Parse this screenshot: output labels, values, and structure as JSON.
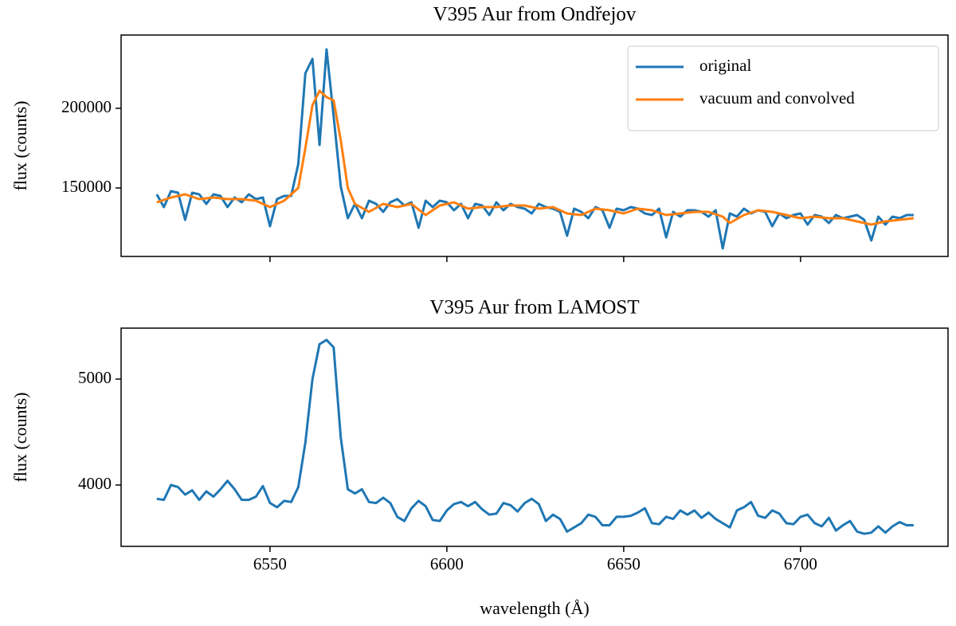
{
  "chart_data": [
    {
      "type": "line",
      "title": "V395 Aur from Ondřejov",
      "ylabel": "flux (counts)",
      "xlim": [
        6507.9,
        6741.7
      ],
      "ylim": [
        107000,
        246000
      ],
      "yticks": [
        150000,
        200000
      ],
      "sharex": 1,
      "legend": "upper right",
      "series": [
        {
          "name": "original",
          "color": "#1f77b4",
          "x": [
            6518,
            6520,
            6522,
            6524,
            6526,
            6528,
            6530,
            6532,
            6534,
            6536,
            6538,
            6540,
            6542,
            6544,
            6546,
            6548,
            6550,
            6552,
            6554,
            6556,
            6558,
            6560,
            6562,
            6564,
            6566,
            6568,
            6570,
            6572,
            6574,
            6576,
            6578,
            6580,
            6582,
            6584,
            6586,
            6588,
            6590,
            6592,
            6594,
            6596,
            6598,
            6600,
            6602,
            6604,
            6606,
            6608,
            6610,
            6612,
            6614,
            6616,
            6618,
            6620,
            6622,
            6624,
            6626,
            6628,
            6630,
            6632,
            6634,
            6636,
            6638,
            6640,
            6642,
            6644,
            6646,
            6648,
            6650,
            6652,
            6654,
            6656,
            6658,
            6660,
            6662,
            6664,
            6666,
            6668,
            6670,
            6672,
            6674,
            6676,
            6678,
            6680,
            6682,
            6684,
            6686,
            6688,
            6690,
            6692,
            6694,
            6696,
            6698,
            6700,
            6702,
            6704,
            6706,
            6708,
            6710,
            6712,
            6714,
            6716,
            6718,
            6720,
            6722,
            6724,
            6726,
            6728,
            6730,
            6732
          ],
          "values": [
            146000,
            138000,
            148000,
            147000,
            130000,
            147000,
            146000,
            140000,
            146000,
            145000,
            138000,
            144000,
            141000,
            146000,
            143000,
            144000,
            126000,
            143000,
            145000,
            145000,
            165000,
            222000,
            231000,
            177000,
            237000,
            195000,
            151000,
            131000,
            140000,
            131000,
            142000,
            140000,
            135000,
            141000,
            143000,
            139000,
            141000,
            125000,
            142000,
            138000,
            142000,
            141000,
            136000,
            140000,
            131000,
            140000,
            139000,
            133000,
            141000,
            136000,
            140000,
            138000,
            137000,
            134000,
            140000,
            138000,
            137000,
            135000,
            120000,
            137000,
            135000,
            131000,
            138000,
            136000,
            125000,
            137000,
            136000,
            138000,
            137000,
            134000,
            133000,
            137000,
            119000,
            135000,
            132000,
            136000,
            136000,
            135000,
            132000,
            136000,
            112000,
            134000,
            132000,
            137000,
            134000,
            136000,
            135000,
            126000,
            134000,
            131000,
            133000,
            134000,
            127000,
            133000,
            132000,
            128000,
            133000,
            131000,
            132000,
            133000,
            130000,
            117000,
            132000,
            127000,
            132000,
            131000,
            133000,
            133000
          ]
        },
        {
          "name": "vacuum and convolved",
          "color": "#ff7f0e",
          "x": [
            6518,
            6522,
            6526,
            6530,
            6534,
            6538,
            6542,
            6546,
            6550,
            6554,
            6558,
            6560,
            6562,
            6564,
            6566,
            6568,
            6570,
            6572,
            6574,
            6578,
            6582,
            6586,
            6590,
            6594,
            6598,
            6602,
            6606,
            6610,
            6614,
            6618,
            6622,
            6626,
            6630,
            6634,
            6638,
            6642,
            6646,
            6650,
            6654,
            6658,
            6662,
            6666,
            6670,
            6674,
            6678,
            6680,
            6684,
            6688,
            6692,
            6696,
            6700,
            6704,
            6708,
            6712,
            6716,
            6720,
            6724,
            6728,
            6732
          ],
          "values": [
            141000,
            144000,
            146000,
            143000,
            144000,
            143000,
            143000,
            142000,
            138000,
            142000,
            150000,
            175000,
            202000,
            211000,
            207000,
            205000,
            180000,
            150000,
            140000,
            135000,
            140000,
            138000,
            140000,
            133000,
            139000,
            141000,
            137000,
            138000,
            138000,
            139000,
            139000,
            137000,
            138000,
            134000,
            133000,
            137000,
            136000,
            134000,
            137000,
            136000,
            133000,
            134000,
            135000,
            135000,
            132000,
            128000,
            133000,
            136000,
            135000,
            133000,
            131000,
            132000,
            131000,
            131000,
            129000,
            127000,
            129000,
            130000,
            131000
          ]
        }
      ]
    },
    {
      "type": "line",
      "title": "V395 Aur from LAMOST",
      "ylabel": "flux (counts)",
      "xlabel": "wavelength (Å)",
      "xlim": [
        6507.9,
        6741.7
      ],
      "ylim": [
        3421,
        5481
      ],
      "yticks": [
        4000,
        5000
      ],
      "xticks": [
        6550,
        6600,
        6650,
        6700
      ],
      "series": [
        {
          "name": null,
          "color": "#1f77b4",
          "x": [
            6518,
            6520,
            6522,
            6524,
            6526,
            6528,
            6530,
            6532,
            6534,
            6536,
            6538,
            6540,
            6542,
            6544,
            6546,
            6548,
            6550,
            6552,
            6554,
            6556,
            6558,
            6560,
            6562,
            6564,
            6566,
            6568,
            6570,
            6572,
            6574,
            6576,
            6578,
            6580,
            6582,
            6584,
            6586,
            6588,
            6590,
            6592,
            6594,
            6596,
            6598,
            6600,
            6602,
            6604,
            6606,
            6608,
            6610,
            6612,
            6614,
            6616,
            6618,
            6620,
            6622,
            6624,
            6626,
            6628,
            6630,
            6632,
            6634,
            6636,
            6638,
            6640,
            6642,
            6644,
            6646,
            6648,
            6650,
            6652,
            6654,
            6656,
            6658,
            6660,
            6662,
            6664,
            6666,
            6668,
            6670,
            6672,
            6674,
            6676,
            6678,
            6680,
            6682,
            6684,
            6686,
            6688,
            6690,
            6692,
            6694,
            6696,
            6698,
            6700,
            6702,
            6704,
            6706,
            6708,
            6710,
            6712,
            6714,
            6716,
            6718,
            6720,
            6722,
            6724,
            6726,
            6728,
            6730,
            6732
          ],
          "values": [
            3870,
            3860,
            4000,
            3980,
            3910,
            3950,
            3860,
            3940,
            3890,
            3960,
            4040,
            3960,
            3860,
            3860,
            3890,
            3990,
            3830,
            3790,
            3850,
            3840,
            3980,
            4400,
            5000,
            5330,
            5370,
            5300,
            4450,
            3960,
            3920,
            3960,
            3840,
            3830,
            3880,
            3830,
            3700,
            3660,
            3780,
            3850,
            3800,
            3670,
            3660,
            3760,
            3820,
            3840,
            3800,
            3840,
            3770,
            3720,
            3730,
            3830,
            3810,
            3750,
            3830,
            3870,
            3820,
            3660,
            3720,
            3680,
            3560,
            3600,
            3640,
            3720,
            3700,
            3620,
            3620,
            3700,
            3700,
            3710,
            3740,
            3780,
            3640,
            3630,
            3700,
            3680,
            3760,
            3720,
            3760,
            3690,
            3740,
            3680,
            3640,
            3600,
            3760,
            3790,
            3840,
            3710,
            3690,
            3760,
            3730,
            3640,
            3630,
            3700,
            3720,
            3640,
            3610,
            3690,
            3570,
            3620,
            3660,
            3560,
            3540,
            3550,
            3610,
            3550,
            3610,
            3650,
            3620,
            3620
          ]
        }
      ]
    }
  ]
}
